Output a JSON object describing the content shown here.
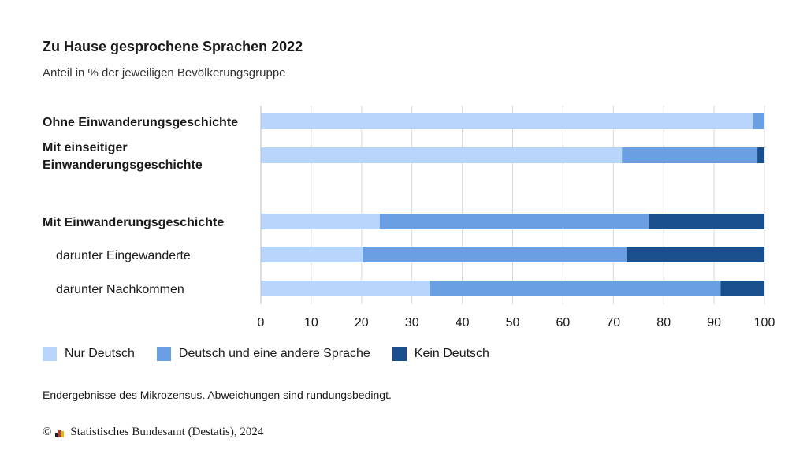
{
  "colors": {
    "nur_deutsch": "#b8d6fb",
    "deutsch_andere": "#6a9fe3",
    "kein_deutsch": "#184f8c",
    "grid": "#d9d9d9"
  },
  "legend": [
    {
      "label": "Nur Deutsch",
      "color": "#b8d6fb"
    },
    {
      "label": "Deutsch und eine andere Sprache",
      "color": "#6a9fe3"
    },
    {
      "label": "Kein Deutsch",
      "color": "#184f8c"
    }
  ],
  "footnote": "Endergebnisse des Mikrozensus. Abweichungen sind rundungsbedingt.",
  "source": {
    "copyright_symbol": "©",
    "logo_icon": "destatis-logo-icon",
    "text": "Statistisches Bundesamt (Destatis), 2024"
  },
  "chart_data": {
    "type": "bar",
    "orientation": "horizontal",
    "stacked": true,
    "title": "Zu Hause gesprochene Sprachen 2022",
    "subtitle": "Anteil in % der jeweiligen Bevölkerungsgruppe",
    "xlim": [
      0,
      100
    ],
    "xticks": [
      0,
      10,
      20,
      30,
      40,
      50,
      60,
      70,
      80,
      90,
      100
    ],
    "grid": true,
    "legend_position": "bottom",
    "categories": [
      {
        "lines": [
          "Ohne Einwanderungsgeschichte"
        ],
        "bold": true,
        "indent": false
      },
      {
        "lines": [
          "Mit einseitiger",
          "Einwanderungsgeschichte"
        ],
        "bold": true,
        "indent": false
      },
      {
        "lines": [
          "Mit Einwanderungsgeschichte"
        ],
        "bold": true,
        "indent": false
      },
      {
        "lines": [
          "darunter Eingewanderte"
        ],
        "bold": false,
        "indent": true
      },
      {
        "lines": [
          "darunter Nachkommen"
        ],
        "bold": false,
        "indent": true
      }
    ],
    "series": [
      {
        "name": "Nur Deutsch",
        "values": [
          97.8,
          71.7,
          23.6,
          20.2,
          33.5
        ]
      },
      {
        "name": "Deutsch und eine andere Sprache",
        "values": [
          2.2,
          26.9,
          53.5,
          52.4,
          57.8
        ]
      },
      {
        "name": "Kein Deutsch",
        "values": [
          0.0,
          1.4,
          22.9,
          27.4,
          8.7
        ]
      }
    ]
  }
}
